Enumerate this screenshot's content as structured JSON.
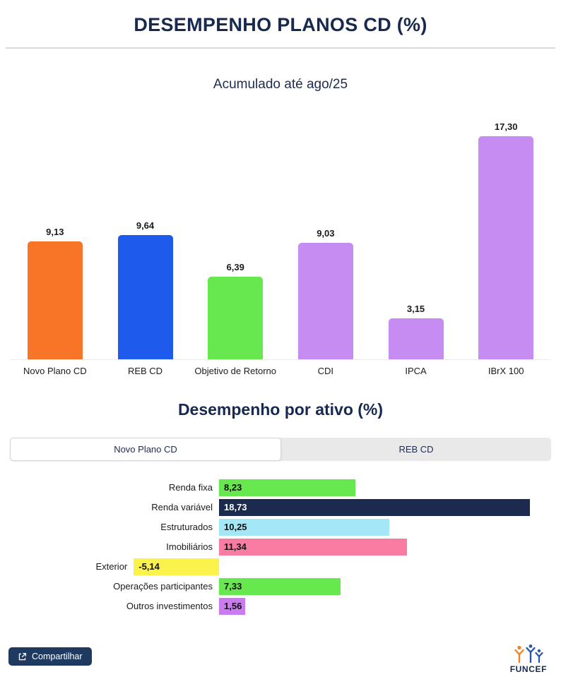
{
  "header": {
    "title": "DESEMPENHO PLANOS CD (%)"
  },
  "overview_chart": {
    "subtitle": "Acumulado até ago/25"
  },
  "asset_section": {
    "title": "Desempenho por ativo (%)"
  },
  "tabs": [
    {
      "label": "Novo Plano CD",
      "active": true
    },
    {
      "label": "REB CD",
      "active": false
    }
  ],
  "footer": {
    "share_label": "Compartilhar",
    "brand": "FUNCEF"
  },
  "colors": {
    "title_navy": "#17294e",
    "share_button": "#1e3a60",
    "divider": "#d9d9d9",
    "logo_orange": "#f58220",
    "logo_blue": "#2a57a5"
  },
  "chart_data": [
    {
      "type": "bar",
      "title": "Acumulado até ago/25",
      "categories": [
        "Novo Plano CD",
        "REB CD",
        "Objetivo de Retorno",
        "CDI",
        "IPCA",
        "IBrX 100"
      ],
      "values": [
        9.13,
        9.64,
        6.39,
        9.03,
        3.15,
        17.3
      ],
      "value_labels": [
        "9,13",
        "9,64",
        "6,39",
        "9,03",
        "3,15",
        "17,30"
      ],
      "colors": [
        "#f87426",
        "#1e5aec",
        "#68e84f",
        "#c78cf2",
        "#c78cf2",
        "#c78cf2"
      ],
      "xlabel": "",
      "ylabel": "",
      "ylim": [
        0,
        17.3
      ],
      "grid": false,
      "legend": false
    },
    {
      "type": "bar",
      "orientation": "horizontal",
      "title": "Desempenho por ativo (%) — Novo Plano CD",
      "categories": [
        "Renda fixa",
        "Renda variável",
        "Estruturados",
        "Imobiliários",
        "Exterior",
        "Operações participantes",
        "Outros investimentos"
      ],
      "values": [
        8.23,
        18.73,
        10.25,
        11.34,
        -5.14,
        7.33,
        1.56
      ],
      "value_labels": [
        "8,23",
        "18,73",
        "10,25",
        "11,34",
        "-5,14",
        "7,33",
        "1,56"
      ],
      "colors": [
        "#68e84f",
        "#1b2a4e",
        "#a4e8f7",
        "#fa7ca3",
        "#fbf24c",
        "#68e84f",
        "#c97bef"
      ],
      "value_text_colors": [
        "#111111",
        "#ffffff",
        "#111111",
        "#111111",
        "#111111",
        "#111111",
        "#111111"
      ],
      "xlabel": "",
      "ylabel": "",
      "xlim": [
        -5.14,
        18.73
      ],
      "grid": false,
      "legend": false
    }
  ]
}
